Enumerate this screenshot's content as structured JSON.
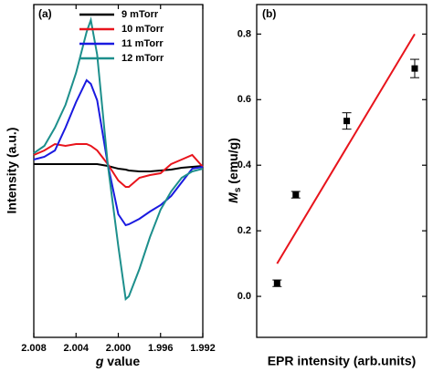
{
  "chart_data": [
    {
      "type": "line",
      "panel_label": "(a)",
      "x_label_parts": [
        "g",
        " value"
      ],
      "y_label": "Intensity (a.u.)",
      "x": [
        2.008,
        2.007,
        2.006,
        2.005,
        2.004,
        2.003,
        2.0026,
        2.002,
        2.001,
        2.0,
        1.9993,
        1.999,
        1.998,
        1.997,
        1.996,
        1.995,
        1.994,
        1.993,
        1.992
      ],
      "xlim": [
        2.008,
        1.992
      ],
      "xticks": [
        2.008,
        2.004,
        {
          "value": 2.0,
          "label": "2.000"
        },
        1.996,
        1.992
      ],
      "ylim": [
        -1.88,
        1.77
      ],
      "legend": "upper right",
      "series": [
        {
          "name": "9 mTorr",
          "color": "#000000",
          "values": [
            0.02,
            0.02,
            0.02,
            0.02,
            0.02,
            0.02,
            0.02,
            0.02,
            0.0,
            -0.03,
            -0.04,
            -0.05,
            -0.06,
            -0.06,
            -0.05,
            -0.04,
            -0.02,
            -0.01,
            0.0
          ]
        },
        {
          "name": "10 mTorr",
          "color": "#e8141c",
          "values": [
            0.12,
            0.17,
            0.24,
            0.22,
            0.24,
            0.24,
            0.22,
            0.17,
            0.02,
            -0.16,
            -0.23,
            -0.23,
            -0.13,
            -0.1,
            -0.08,
            0.02,
            0.07,
            0.12,
            -0.01
          ]
        },
        {
          "name": "11 mTorr",
          "color": "#1a1ae0",
          "values": [
            0.07,
            0.1,
            0.17,
            0.42,
            0.7,
            0.94,
            0.9,
            0.72,
            0.02,
            -0.53,
            -0.65,
            -0.64,
            -0.58,
            -0.5,
            -0.43,
            -0.33,
            -0.18,
            -0.03,
            -0.01
          ]
        },
        {
          "name": "12 mTorr",
          "color": "#1d8f8c",
          "values": [
            0.14,
            0.22,
            0.42,
            0.67,
            1.02,
            1.47,
            1.6,
            1.22,
            0.02,
            -0.88,
            -1.46,
            -1.43,
            -1.13,
            -0.78,
            -0.48,
            -0.28,
            -0.13,
            -0.06,
            -0.03
          ]
        }
      ]
    },
    {
      "type": "scatter",
      "panel_label": "(b)",
      "x_label": "EPR intensity (arb.units)",
      "y_label_parts": [
        "M",
        "s",
        " (emu/g)"
      ],
      "xlim": [
        0,
        1
      ],
      "ylim": [
        -0.125,
        0.89
      ],
      "yticks": [
        {
          "value": 0.0,
          "label": "0.0"
        },
        0.2,
        0.4,
        0.6,
        0.8
      ],
      "series": [
        {
          "type": "scatter",
          "color": "#000000",
          "x": [
            0.12,
            0.23,
            0.53,
            0.93
          ],
          "values": [
            0.04,
            0.31,
            0.535,
            0.695
          ],
          "errors": [
            0.01,
            0.01,
            0.025,
            0.028
          ]
        },
        {
          "type": "line",
          "color": "#e8141c",
          "x": [
            0.12,
            0.93
          ],
          "values": [
            0.1,
            0.8
          ]
        }
      ]
    }
  ]
}
